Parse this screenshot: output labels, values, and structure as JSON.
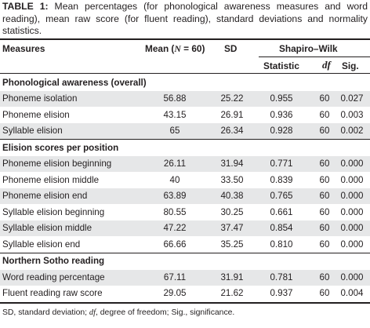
{
  "caption": {
    "label": "TABLE 1:",
    "text": " Mean percentages (for phonological awareness measures and word reading), mean raw score (for fluent reading), standard deviations and normality statistics."
  },
  "headers": {
    "measures": "Measures",
    "mean_prefix": "Mean (",
    "mean_n": "N",
    "mean_suffix": " = 60)",
    "sd": "SD",
    "shapiro": "Shapiro–Wilk",
    "statistic": "Statistic",
    "df": "df",
    "sig": "Sig."
  },
  "sections": [
    {
      "title": "Phonological awareness (overall)",
      "rows": [
        {
          "measure": "Phoneme isolation",
          "mean": "56.88",
          "sd": "25.22",
          "statistic": "0.955",
          "df": "60",
          "sig": "0.027"
        },
        {
          "measure": "Phoneme elision",
          "mean": "43.15",
          "sd": "26.91",
          "statistic": "0.936",
          "df": "60",
          "sig": "0.003"
        },
        {
          "measure": "Syllable elision",
          "mean": "65",
          "sd": "26.34",
          "statistic": "0.928",
          "df": "60",
          "sig": "0.002"
        }
      ]
    },
    {
      "title": "Elision scores per position",
      "rows": [
        {
          "measure": "Phoneme elision beginning",
          "mean": "26.11",
          "sd": "31.94",
          "statistic": "0.771",
          "df": "60",
          "sig": "0.000"
        },
        {
          "measure": "Phoneme elision middle",
          "mean": "40",
          "sd": "33.50",
          "statistic": "0.839",
          "df": "60",
          "sig": "0.000"
        },
        {
          "measure": "Phoneme elision end",
          "mean": "63.89",
          "sd": "40.38",
          "statistic": "0.765",
          "df": "60",
          "sig": "0.000"
        },
        {
          "measure": "Syllable elision beginning",
          "mean": "80.55",
          "sd": "30.25",
          "statistic": "0.661",
          "df": "60",
          "sig": "0.000"
        },
        {
          "measure": "Syllable elision middle",
          "mean": "47.22",
          "sd": "37.47",
          "statistic": "0.854",
          "df": "60",
          "sig": "0.000"
        },
        {
          "measure": "Syllable elision end",
          "mean": "66.66",
          "sd": "35.25",
          "statistic": "0.810",
          "df": "60",
          "sig": "0.000"
        }
      ]
    },
    {
      "title": "Northern Sotho reading",
      "rows": [
        {
          "measure": "Word reading percentage",
          "mean": "67.11",
          "sd": "31.91",
          "statistic": "0.781",
          "df": "60",
          "sig": "0.000"
        },
        {
          "measure": "Fluent reading raw score",
          "mean": "29.05",
          "sd": "21.62",
          "statistic": "0.937",
          "df": "60",
          "sig": "0.004"
        }
      ]
    }
  ],
  "footnote": {
    "part1": "SD, standard deviation; ",
    "df": "df",
    "part2": ", degree of freedom; Sig., significance."
  },
  "colors": {
    "shade": "#e6e7e8",
    "text": "#231f20"
  }
}
